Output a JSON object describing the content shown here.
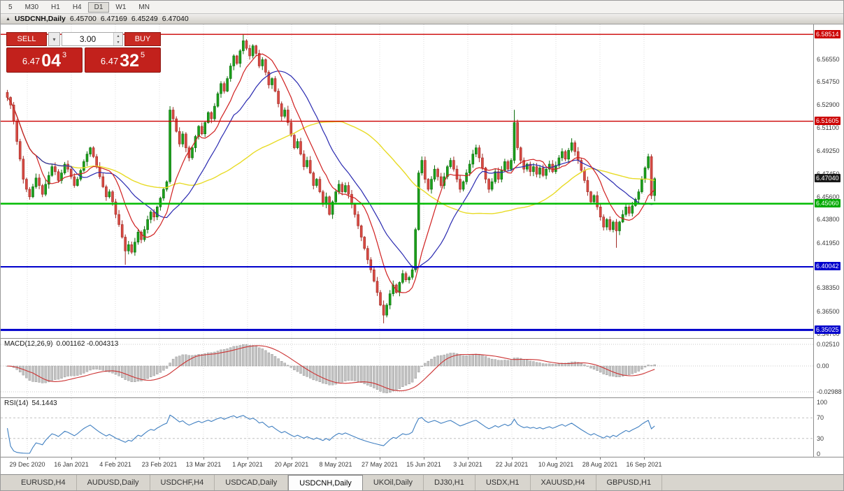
{
  "toolbar": {
    "timeframes": [
      "5",
      "M30",
      "H1",
      "H4",
      "D1",
      "W1",
      "MN"
    ],
    "active": "D1"
  },
  "chart_header": {
    "collapse_icon": "▲",
    "symbol": "USDCNH,Daily",
    "open": "6.45700",
    "high": "6.47169",
    "low": "6.45249",
    "close": "6.47040"
  },
  "trade_panel": {
    "sell_label": "SELL",
    "buy_label": "BUY",
    "volume": "3.00",
    "sell_price_small": "6.47",
    "sell_price_big": "04",
    "sell_price_sup": "3",
    "buy_price_small": "6.47",
    "buy_price_big": "32",
    "buy_price_sup": "5"
  },
  "chart_data": {
    "type": "candlestick",
    "symbol": "USDCNH",
    "timeframe": "Daily",
    "ylim": [
      6.3438,
      6.593
    ],
    "closes": [
      6.535,
      6.529,
      6.516,
      6.5,
      6.486,
      6.47,
      6.462,
      6.456,
      6.464,
      6.471,
      6.465,
      6.458,
      6.466,
      6.473,
      6.48,
      6.476,
      6.469,
      6.475,
      6.482,
      6.478,
      6.472,
      6.465,
      6.47,
      6.477,
      6.484,
      6.49,
      6.495,
      6.488,
      6.48,
      6.472,
      6.464,
      6.456,
      6.46,
      6.452,
      6.442,
      6.434,
      6.424,
      6.413,
      6.418,
      6.412,
      6.42,
      6.428,
      6.422,
      6.43,
      6.438,
      6.444,
      6.44,
      6.448,
      6.455,
      6.462,
      6.468,
      6.525,
      6.518,
      6.508,
      6.498,
      6.506,
      6.495,
      6.487,
      6.495,
      6.504,
      6.512,
      6.506,
      6.515,
      6.523,
      6.518,
      6.528,
      6.538,
      6.546,
      6.54,
      6.55,
      6.56,
      6.568,
      6.562,
      6.572,
      6.58,
      6.574,
      6.568,
      6.576,
      6.57,
      6.56,
      6.565,
      6.555,
      6.545,
      6.55,
      6.54,
      6.53,
      6.52,
      6.525,
      6.515,
      6.505,
      6.495,
      6.5,
      6.49,
      6.48,
      6.485,
      6.475,
      6.465,
      6.47,
      6.46,
      6.45,
      6.456,
      6.442,
      6.452,
      6.46,
      6.466,
      6.46,
      6.465,
      6.458,
      6.45,
      6.442,
      6.433,
      6.424,
      6.415,
      6.406,
      6.398,
      6.389,
      6.38,
      6.37,
      6.362,
      6.37,
      6.379,
      6.386,
      6.38,
      6.388,
      6.395,
      6.39,
      6.392,
      6.398,
      6.43,
      6.475,
      6.485,
      6.47,
      6.462,
      6.47,
      6.478,
      6.472,
      6.465,
      6.472,
      6.48,
      6.485,
      6.478,
      6.47,
      6.462,
      6.468,
      6.475,
      6.482,
      6.49,
      6.495,
      6.487,
      6.479,
      6.47,
      6.462,
      6.468,
      6.476,
      6.47,
      6.477,
      6.484,
      6.478,
      6.485,
      6.515,
      6.495,
      6.485,
      6.478,
      6.482,
      6.476,
      6.48,
      6.474,
      6.479,
      6.473,
      6.478,
      6.482,
      6.476,
      6.481,
      6.487,
      6.492,
      6.486,
      6.493,
      6.499,
      6.492,
      6.485,
      6.477,
      6.469,
      6.46,
      6.452,
      6.457,
      6.448,
      6.44,
      6.432,
      6.438,
      6.43,
      6.436,
      6.429,
      6.436,
      6.442,
      6.448,
      6.443,
      6.449,
      6.454,
      6.46,
      6.47,
      6.479,
      6.488,
      6.457,
      6.4704
    ],
    "current_ohlc": {
      "open": 6.457,
      "high": 6.47169,
      "low": 6.45249,
      "close": 6.4704
    },
    "wick_overrides": {
      "0": {
        "h": 6.541
      },
      "37": {
        "l": 6.402
      },
      "74": {
        "h": 6.5851
      },
      "118": {
        "l": 6.3555
      },
      "159": {
        "h": 6.5251
      },
      "191": {
        "l": 6.4155
      }
    },
    "ma_periods": {
      "fast": 10,
      "mid": 21,
      "slow": 55
    },
    "levels": [
      {
        "price": 6.58514,
        "color": "#cc0000",
        "width": 1.4
      },
      {
        "price": 6.51605,
        "color": "#cc0000",
        "width": 1.4
      },
      {
        "price": 6.4506,
        "color": "#00bb00",
        "width": 2.5
      },
      {
        "price": 6.40042,
        "color": "#0000cc",
        "width": 2
      },
      {
        "price": 6.35025,
        "color": "#0000cc",
        "width": 3
      }
    ]
  },
  "macd": {
    "label": "MACD(12,26,9)",
    "values": "0.001162 -0.004313",
    "fast": 12,
    "slow": 26,
    "signal": 9,
    "axis": [
      "0.02510",
      "0.00",
      "-0.02988"
    ]
  },
  "rsi": {
    "label": "RSI(14)",
    "values": "54.1443",
    "period": 14,
    "levels": [
      70,
      30
    ],
    "axis": [
      "100",
      "70",
      "30",
      "0"
    ]
  },
  "price_axis": {
    "ticks": [
      {
        "label": "6.56550",
        "price": 6.5655
      },
      {
        "label": "6.54750",
        "price": 6.5475
      },
      {
        "label": "6.52900",
        "price": 6.529
      },
      {
        "label": "6.51100",
        "price": 6.511
      },
      {
        "label": "6.49250",
        "price": 6.4925
      },
      {
        "label": "6.47450",
        "price": 6.4745
      },
      {
        "label": "6.45600",
        "price": 6.456
      },
      {
        "label": "6.43800",
        "price": 6.438
      },
      {
        "label": "6.41950",
        "price": 6.4195
      },
      {
        "label": "6.38350",
        "price": 6.3835
      },
      {
        "label": "6.36500",
        "price": 6.365
      },
      {
        "label": "6.34700",
        "price": 6.347
      }
    ],
    "markers": [
      {
        "label": "6.58514",
        "price": 6.58514,
        "color": "#cc0000"
      },
      {
        "label": "6.51605",
        "price": 6.51605,
        "color": "#cc0000"
      },
      {
        "label": "6.47040",
        "price": 6.4704,
        "color": "#1a1a1a",
        "kind": "current"
      },
      {
        "label": "6.45060",
        "price": 6.4506,
        "color": "#00aa00"
      },
      {
        "label": "6.40042",
        "price": 6.40042,
        "color": "#0000cc"
      },
      {
        "label": "6.35025",
        "price": 6.35025,
        "color": "#0000cc"
      }
    ]
  },
  "dates": [
    "29 Dec 2020",
    "16 Jan 2021",
    "4 Feb 2021",
    "23 Feb 2021",
    "13 Mar 2021",
    "1 Apr 2021",
    "20 Apr 2021",
    "8 May 2021",
    "27 May 2021",
    "15 Jun 2021",
    "3 Jul 2021",
    "22 Jul 2021",
    "10 Aug 2021",
    "28 Aug 2021",
    "16 Sep 2021"
  ],
  "tabs": [
    {
      "label": "EURUSD,H4"
    },
    {
      "label": "AUDUSD,Daily"
    },
    {
      "label": "USDCHF,H4"
    },
    {
      "label": "USDCAD,Daily"
    },
    {
      "label": "USDCNH,Daily",
      "active": true
    },
    {
      "label": "UKOil,Daily"
    },
    {
      "label": "DJ30,H1"
    },
    {
      "label": "USDX,H1"
    },
    {
      "label": "XAUUSD,H4"
    },
    {
      "label": "GBPUSD,H1"
    }
  ],
  "colors": {
    "bull": "#1ba01b",
    "bull_edge": "#0c6e0c",
    "bear": "#d84b44",
    "bear_edge": "#a02a24",
    "ma_fast": "#d02020",
    "ma_mid": "#2929b0",
    "ma_slow": "#e8db25",
    "macd_hist": "#c2c2c2",
    "macd_edge": "#8f8f8f",
    "macd_signal": "#cc3333",
    "rsi_line": "#3f7fc1",
    "grid": "#dedede"
  }
}
